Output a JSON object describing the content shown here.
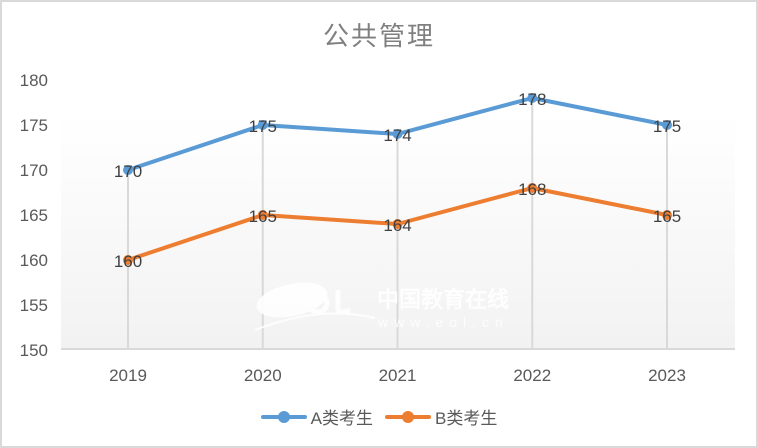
{
  "chart_data": {
    "type": "line",
    "title": "公共管理",
    "xlabel": "",
    "ylabel": "",
    "categories": [
      "2019",
      "2020",
      "2021",
      "2022",
      "2023"
    ],
    "series": [
      {
        "name": "A类考生",
        "color": "#5b9bd5",
        "values": [
          170,
          175,
          174,
          178,
          175
        ]
      },
      {
        "name": "B类考生",
        "color": "#ed7d31",
        "values": [
          160,
          165,
          164,
          168,
          165
        ]
      }
    ],
    "ylim": [
      150,
      180
    ],
    "yticks": [
      150,
      155,
      160,
      165,
      170,
      175,
      180
    ],
    "grid": {
      "vertical_drop_lines": true,
      "horizontal": false
    },
    "data_labels": true,
    "legend_position": "bottom",
    "watermark": {
      "logo": "eol",
      "cn": "中国教育在线",
      "url": "www.eol.cn"
    }
  }
}
